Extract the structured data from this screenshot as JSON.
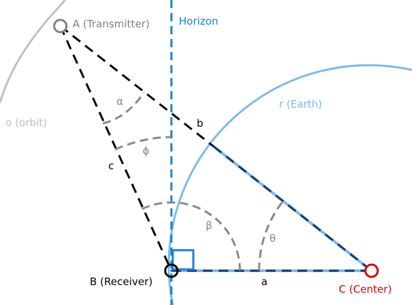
{
  "labels": {
    "point_a": "A (Transmitter)",
    "point_b": "B (Receiver)",
    "point_c": "C (Center)",
    "horizon": "Horizon",
    "earth": "r (Earth)",
    "orbit": "o (orbit)",
    "side_a": "a",
    "side_b": "b",
    "side_c": "c",
    "angle_alpha": "α",
    "angle_phi": "ϕ",
    "angle_beta": "β",
    "angle_theta": "θ"
  },
  "colors": {
    "orbit": "#c0c0c0",
    "point_a": "#808080",
    "horizon": "#1a7fd6",
    "earth": "#7fb8ec",
    "earth_radius_dash": "#143d66",
    "center": "#dd0000",
    "right_angle": "#1a7fd6",
    "angle_arc": "#888888",
    "construction": "#000000"
  }
}
